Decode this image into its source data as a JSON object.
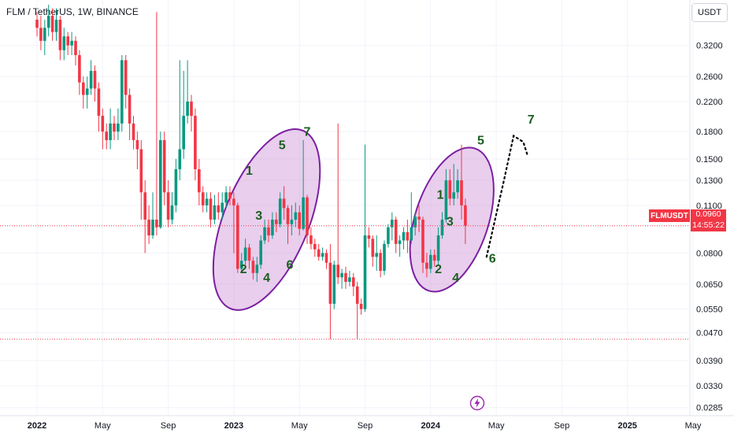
{
  "header": {
    "title": "FLM / TetherUS, 1W, BINANCE",
    "currency": "USDT"
  },
  "price_tags": {
    "symbol": "FLMUSDT",
    "last_price": "0.0960",
    "countdown": "14:55:22"
  },
  "colors": {
    "up": "#089981",
    "down": "#f23645",
    "ellipse_stroke": "#7b1fa2",
    "ellipse_fill": "#ce93d8",
    "wave_label": "#1b5e20"
  },
  "icons": {
    "bottom_marker": "lightning-icon"
  },
  "chart_data": {
    "type": "candlestick",
    "scale": "log",
    "ylim": [
      0.027,
      0.42
    ],
    "y_ticks": [
      "0.3200",
      "0.2600",
      "0.2200",
      "0.1800",
      "0.1500",
      "0.1300",
      "0.1100",
      "0.0800",
      "0.0650",
      "0.0550",
      "0.0470",
      "0.0390",
      "0.0330",
      "0.0285"
    ],
    "y_tick_values": [
      0.32,
      0.26,
      0.22,
      0.18,
      0.15,
      0.13,
      0.11,
      0.08,
      0.065,
      0.055,
      0.047,
      0.039,
      0.033,
      0.0285
    ],
    "x_ticks": [
      {
        "label": "2022",
        "bold": true,
        "i": 0
      },
      {
        "label": "May",
        "bold": false,
        "i": 17
      },
      {
        "label": "Sep",
        "bold": false,
        "i": 34
      },
      {
        "label": "2023",
        "bold": true,
        "i": 51
      },
      {
        "label": "May",
        "bold": false,
        "i": 68
      },
      {
        "label": "Sep",
        "bold": false,
        "i": 85
      },
      {
        "label": "2024",
        "bold": true,
        "i": 102
      },
      {
        "label": "May",
        "bold": false,
        "i": 119
      },
      {
        "label": "Sep",
        "bold": false,
        "i": 136
      },
      {
        "label": "2025",
        "bold": true,
        "i": 153
      },
      {
        "label": "May",
        "bold": false,
        "i": 170
      }
    ],
    "last_price": 0.096,
    "support_level": 0.045,
    "candles": [
      [
        0.38,
        0.36,
        0.4,
        0.34
      ],
      [
        0.36,
        0.33,
        0.39,
        0.31
      ],
      [
        0.33,
        0.36,
        0.38,
        0.3
      ],
      [
        0.36,
        0.39,
        0.42,
        0.34
      ],
      [
        0.39,
        0.35,
        0.41,
        0.33
      ],
      [
        0.35,
        0.38,
        0.41,
        0.33
      ],
      [
        0.38,
        0.31,
        0.39,
        0.29
      ],
      [
        0.31,
        0.34,
        0.36,
        0.29
      ],
      [
        0.34,
        0.32,
        0.35,
        0.3
      ],
      [
        0.32,
        0.33,
        0.35,
        0.3
      ],
      [
        0.33,
        0.3,
        0.34,
        0.28
      ],
      [
        0.3,
        0.25,
        0.31,
        0.23
      ],
      [
        0.25,
        0.23,
        0.26,
        0.21
      ],
      [
        0.23,
        0.24,
        0.26,
        0.21
      ],
      [
        0.24,
        0.27,
        0.29,
        0.23
      ],
      [
        0.27,
        0.24,
        0.28,
        0.22
      ],
      [
        0.24,
        0.2,
        0.25,
        0.18
      ],
      [
        0.2,
        0.18,
        0.21,
        0.16
      ],
      [
        0.18,
        0.17,
        0.19,
        0.16
      ],
      [
        0.17,
        0.19,
        0.21,
        0.16
      ],
      [
        0.19,
        0.18,
        0.2,
        0.17
      ],
      [
        0.18,
        0.19,
        0.21,
        0.17
      ],
      [
        0.19,
        0.29,
        0.3,
        0.18
      ],
      [
        0.29,
        0.23,
        0.3,
        0.21
      ],
      [
        0.23,
        0.19,
        0.24,
        0.17
      ],
      [
        0.19,
        0.17,
        0.2,
        0.16
      ],
      [
        0.17,
        0.16,
        0.18,
        0.14
      ],
      [
        0.16,
        0.12,
        0.17,
        0.1
      ],
      [
        0.12,
        0.1,
        0.13,
        0.08
      ],
      [
        0.1,
        0.09,
        0.11,
        0.085
      ],
      [
        0.09,
        0.1,
        0.12,
        0.088
      ],
      [
        0.1,
        0.095,
        0.4,
        0.09
      ],
      [
        0.095,
        0.17,
        0.18,
        0.094
      ],
      [
        0.17,
        0.12,
        0.18,
        0.11
      ],
      [
        0.12,
        0.1,
        0.13,
        0.095
      ],
      [
        0.1,
        0.11,
        0.12,
        0.097
      ],
      [
        0.11,
        0.14,
        0.15,
        0.105
      ],
      [
        0.14,
        0.16,
        0.29,
        0.13
      ],
      [
        0.16,
        0.2,
        0.27,
        0.15
      ],
      [
        0.2,
        0.22,
        0.29,
        0.19
      ],
      [
        0.22,
        0.2,
        0.23,
        0.18
      ],
      [
        0.2,
        0.14,
        0.21,
        0.13
      ],
      [
        0.14,
        0.12,
        0.15,
        0.11
      ],
      [
        0.12,
        0.11,
        0.125,
        0.105
      ],
      [
        0.11,
        0.115,
        0.12,
        0.105
      ],
      [
        0.115,
        0.1,
        0.12,
        0.095
      ],
      [
        0.1,
        0.11,
        0.118,
        0.097
      ],
      [
        0.11,
        0.105,
        0.12,
        0.1
      ],
      [
        0.105,
        0.112,
        0.12,
        0.1
      ],
      [
        0.112,
        0.12,
        0.125,
        0.108
      ],
      [
        0.12,
        0.115,
        0.125,
        0.11
      ],
      [
        0.115,
        0.11,
        0.12,
        0.08
      ],
      [
        0.11,
        0.072,
        0.112,
        0.07
      ],
      [
        0.072,
        0.076,
        0.08,
        0.07
      ],
      [
        0.076,
        0.083,
        0.088,
        0.074
      ],
      [
        0.083,
        0.076,
        0.085,
        0.072
      ],
      [
        0.076,
        0.07,
        0.078,
        0.067
      ],
      [
        0.07,
        0.074,
        0.078,
        0.066
      ],
      [
        0.074,
        0.087,
        0.09,
        0.072
      ],
      [
        0.087,
        0.095,
        0.1,
        0.085
      ],
      [
        0.095,
        0.09,
        0.1,
        0.086
      ],
      [
        0.09,
        0.1,
        0.105,
        0.088
      ],
      [
        0.1,
        0.097,
        0.105,
        0.092
      ],
      [
        0.097,
        0.115,
        0.12,
        0.095
      ],
      [
        0.115,
        0.108,
        0.125,
        0.1
      ],
      [
        0.108,
        0.097,
        0.11,
        0.085
      ],
      [
        0.097,
        0.1,
        0.11,
        0.09
      ],
      [
        0.1,
        0.105,
        0.112,
        0.095
      ],
      [
        0.105,
        0.094,
        0.11,
        0.09
      ],
      [
        0.094,
        0.116,
        0.17,
        0.093
      ],
      [
        0.116,
        0.09,
        0.118,
        0.085
      ],
      [
        0.09,
        0.085,
        0.095,
        0.082
      ],
      [
        0.085,
        0.082,
        0.088,
        0.078
      ],
      [
        0.082,
        0.078,
        0.085,
        0.076
      ],
      [
        0.078,
        0.08,
        0.083,
        0.076
      ],
      [
        0.08,
        0.075,
        0.082,
        0.072
      ],
      [
        0.075,
        0.057,
        0.085,
        0.045
      ],
      [
        0.057,
        0.074,
        0.076,
        0.055
      ],
      [
        0.074,
        0.068,
        0.19,
        0.065
      ],
      [
        0.068,
        0.07,
        0.072,
        0.063
      ],
      [
        0.07,
        0.066,
        0.073,
        0.063
      ],
      [
        0.066,
        0.068,
        0.071,
        0.064
      ],
      [
        0.068,
        0.064,
        0.07,
        0.06
      ],
      [
        0.064,
        0.057,
        0.066,
        0.045
      ],
      [
        0.057,
        0.055,
        0.059,
        0.053
      ],
      [
        0.055,
        0.09,
        0.165,
        0.054
      ],
      [
        0.09,
        0.088,
        0.095,
        0.083
      ],
      [
        0.088,
        0.078,
        0.09,
        0.073
      ],
      [
        0.078,
        0.08,
        0.09,
        0.071
      ],
      [
        0.08,
        0.071,
        0.082,
        0.068
      ],
      [
        0.071,
        0.085,
        0.087,
        0.069
      ],
      [
        0.085,
        0.095,
        0.097,
        0.083
      ],
      [
        0.095,
        0.1,
        0.105,
        0.087
      ],
      [
        0.1,
        0.085,
        0.102,
        0.08
      ],
      [
        0.085,
        0.087,
        0.09,
        0.078
      ],
      [
        0.087,
        0.092,
        0.095,
        0.082
      ],
      [
        0.092,
        0.087,
        0.1,
        0.08
      ],
      [
        0.087,
        0.095,
        0.12,
        0.085
      ],
      [
        0.095,
        0.102,
        0.105,
        0.09
      ],
      [
        0.102,
        0.1,
        0.11,
        0.092
      ],
      [
        0.1,
        0.075,
        0.102,
        0.07
      ],
      [
        0.075,
        0.072,
        0.08,
        0.068
      ],
      [
        0.072,
        0.079,
        0.082,
        0.07
      ],
      [
        0.079,
        0.076,
        0.082,
        0.073
      ],
      [
        0.076,
        0.09,
        0.095,
        0.074
      ],
      [
        0.09,
        0.1,
        0.105,
        0.088
      ],
      [
        0.1,
        0.13,
        0.14,
        0.098
      ],
      [
        0.13,
        0.115,
        0.14,
        0.11
      ],
      [
        0.115,
        0.12,
        0.145,
        0.11
      ],
      [
        0.12,
        0.13,
        0.14,
        0.115
      ],
      [
        0.13,
        0.11,
        0.165,
        0.1
      ],
      [
        0.11,
        0.096,
        0.115,
        0.085
      ]
    ],
    "ellipses": [
      {
        "cx_i": 59.5,
        "cy": 0.1,
        "rx_i": 11,
        "ry_px": 122,
        "angle": 22
      },
      {
        "cx_i": 107.5,
        "cy": 0.1,
        "rx_i": 9.5,
        "ry_px": 95,
        "angle": 18
      }
    ],
    "wave_labels": [
      {
        "text": "1",
        "i": 55,
        "y": 0.135
      },
      {
        "text": "2",
        "i": 53.5,
        "y": 0.07
      },
      {
        "text": "3",
        "i": 57.5,
        "y": 0.1
      },
      {
        "text": "4",
        "i": 59.5,
        "y": 0.066
      },
      {
        "text": "5",
        "i": 63.5,
        "y": 0.16
      },
      {
        "text": "6",
        "i": 65.5,
        "y": 0.072
      },
      {
        "text": "7",
        "i": 70,
        "y": 0.175
      },
      {
        "text": "1",
        "i": 104.5,
        "y": 0.115
      },
      {
        "text": "2",
        "i": 104,
        "y": 0.07
      },
      {
        "text": "3",
        "i": 107,
        "y": 0.096
      },
      {
        "text": "4",
        "i": 108.5,
        "y": 0.066
      },
      {
        "text": "5",
        "i": 115,
        "y": 0.165
      },
      {
        "text": "6",
        "i": 118,
        "y": 0.075
      },
      {
        "text": "7",
        "i": 128,
        "y": 0.19
      }
    ],
    "projection": [
      [
        116.5,
        0.078
      ],
      [
        121,
        0.13
      ],
      [
        123.5,
        0.175
      ],
      [
        126,
        0.168
      ],
      [
        127,
        0.155
      ]
    ]
  }
}
